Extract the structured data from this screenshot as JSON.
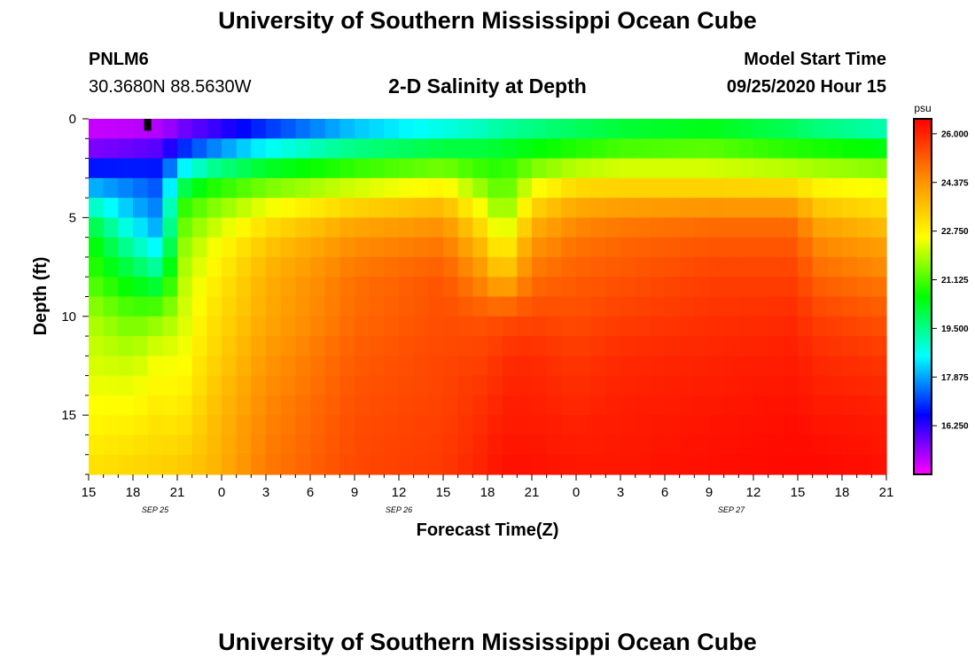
{
  "header": {
    "title": "University of Southern Mississippi Ocean Cube",
    "station_id": "PNLM6",
    "station_coords": "30.3680N 88.5630W",
    "subtitle": "2-D Salinity at Depth",
    "model_start_label": "Model Start Time",
    "model_start_value": "09/25/2020 Hour 15"
  },
  "footer": {
    "title": "University of Southern Mississippi Ocean Cube"
  },
  "chart_data": {
    "type": "heatmap",
    "title": "2-D Salinity at Depth",
    "xlabel": "Forecast Time(Z)",
    "ylabel": "Depth (ft)",
    "x_ticks": [
      "15",
      "18",
      "21",
      "0",
      "3",
      "6",
      "9",
      "12",
      "15",
      "18",
      "21",
      "0",
      "3",
      "6",
      "9",
      "12",
      "15",
      "18",
      "21"
    ],
    "x_date_labels": [
      {
        "label": "SEP 25",
        "hour_index": 4.5
      },
      {
        "label": "SEP 26",
        "hour_index": 21
      },
      {
        "label": "SEP 27",
        "hour_index": 43.5
      }
    ],
    "x_range_hours": [
      0,
      54
    ],
    "y_ticks": [
      "0",
      "5",
      "10",
      "15"
    ],
    "y_range": [
      0,
      18
    ],
    "colorbar": {
      "unit": "psu",
      "min": 14.625,
      "max": 26.5,
      "ticks": [
        "26.000",
        "24.375",
        "22.750",
        "21.125",
        "19.500",
        "17.875",
        "16.250"
      ],
      "colors": [
        "#ff00ff",
        "#0000ff",
        "#00ffff",
        "#00ff00",
        "#ffff00",
        "#ff8c00",
        "#ff0000"
      ]
    },
    "salinity_profiles": {
      "depths_ft": [
        0,
        1,
        2,
        3,
        4,
        5,
        6,
        8,
        10,
        12,
        15,
        18
      ],
      "times_hours": [
        0,
        3,
        5,
        6,
        8,
        12,
        18,
        24,
        27,
        28,
        29,
        30,
        33,
        36,
        42,
        48,
        49,
        54
      ],
      "values": [
        [
          14.9,
          15.2,
          16.0,
          17.5,
          18.6,
          19.8,
          20.6,
          21.1,
          21.9,
          22.2,
          22.6,
          23.1
        ],
        [
          15.0,
          15.3,
          16.3,
          17.3,
          17.8,
          18.2,
          18.9,
          20.2,
          21.3,
          22.0,
          22.7,
          23.3
        ],
        [
          15.1,
          15.4,
          16.5,
          17.0,
          17.4,
          17.6,
          18.0,
          19.6,
          21.6,
          22.5,
          23.0,
          23.4
        ],
        [
          15.3,
          16.0,
          17.5,
          19.0,
          20.5,
          21.0,
          21.4,
          21.8,
          22.0,
          22.3,
          22.8,
          23.5
        ],
        [
          15.6,
          16.5,
          18.5,
          20.2,
          21.2,
          21.7,
          22.2,
          22.6,
          22.9,
          23.1,
          23.5,
          23.7
        ],
        [
          16.3,
          17.7,
          19.5,
          21.0,
          22.0,
          22.8,
          23.4,
          23.9,
          24.0,
          24.3,
          24.6,
          24.8
        ],
        [
          17.5,
          18.8,
          20.3,
          21.6,
          22.8,
          23.8,
          24.4,
          24.9,
          25.0,
          25.2,
          25.4,
          25.5
        ],
        [
          18.3,
          19.3,
          20.8,
          22.1,
          23.3,
          24.2,
          24.7,
          25.3,
          25.4,
          25.5,
          25.6,
          25.7
        ],
        [
          18.7,
          19.6,
          20.6,
          21.2,
          21.9,
          22.6,
          23.3,
          24.3,
          25.3,
          25.6,
          25.9,
          26.1
        ],
        [
          18.9,
          19.8,
          20.7,
          21.0,
          21.3,
          21.6,
          22.2,
          23.5,
          25.4,
          25.8,
          26.1,
          26.3
        ],
        [
          19.0,
          19.9,
          20.8,
          21.4,
          21.9,
          22.5,
          23.2,
          24.2,
          25.4,
          25.9,
          26.1,
          26.3
        ],
        [
          19.1,
          20.0,
          21.0,
          22.0,
          22.9,
          23.6,
          24.2,
          24.9,
          25.5,
          25.9,
          26.1,
          26.3
        ],
        [
          19.4,
          20.3,
          21.3,
          22.7,
          23.7,
          24.4,
          24.8,
          25.2,
          25.4,
          25.7,
          26.0,
          26.2
        ],
        [
          19.7,
          20.6,
          21.6,
          22.8,
          23.8,
          24.6,
          25.0,
          25.3,
          25.6,
          25.9,
          26.1,
          26.2
        ],
        [
          20.0,
          20.8,
          21.7,
          22.7,
          23.9,
          24.8,
          25.2,
          25.6,
          25.8,
          26.0,
          26.2,
          26.3
        ],
        [
          19.4,
          20.3,
          21.3,
          22.6,
          23.8,
          24.8,
          25.2,
          25.6,
          25.9,
          26.1,
          26.3,
          26.4
        ],
        [
          19.2,
          20.1,
          21.4,
          22.3,
          23.2,
          23.9,
          24.5,
          25.1,
          25.6,
          25.9,
          26.2,
          26.4
        ],
        [
          18.6,
          19.8,
          21.1,
          22.1,
          22.8,
          23.4,
          24.0,
          24.7,
          25.3,
          25.7,
          26.1,
          26.3
        ]
      ]
    }
  }
}
